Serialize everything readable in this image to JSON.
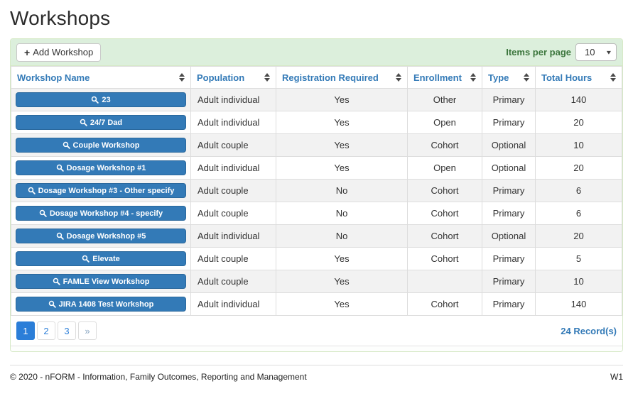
{
  "page": {
    "title": "Workshops"
  },
  "toolbar": {
    "add_button_label": "Add Workshop",
    "add_icon": "+",
    "items_per_page_label": "Items per page",
    "items_per_page_value": "10",
    "select_chevron": "▼"
  },
  "table": {
    "columns": [
      {
        "label": "Workshop Name"
      },
      {
        "label": "Population"
      },
      {
        "label": "Registration Required"
      },
      {
        "label": "Enrollment"
      },
      {
        "label": "Type"
      },
      {
        "label": "Total Hours"
      }
    ],
    "rows": [
      {
        "name": "23",
        "population": "Adult individual",
        "registration_required": "Yes",
        "enrollment": "Other",
        "type": "Primary",
        "total_hours": "140"
      },
      {
        "name": "24/7 Dad",
        "population": "Adult individual",
        "registration_required": "Yes",
        "enrollment": "Open",
        "type": "Primary",
        "total_hours": "20"
      },
      {
        "name": "Couple Workshop",
        "population": "Adult couple",
        "registration_required": "Yes",
        "enrollment": "Cohort",
        "type": "Optional",
        "total_hours": "10"
      },
      {
        "name": "Dosage Workshop #1",
        "population": "Adult individual",
        "registration_required": "Yes",
        "enrollment": "Open",
        "type": "Optional",
        "total_hours": "20"
      },
      {
        "name": "Dosage Workshop #3 - Other specify",
        "population": "Adult couple",
        "registration_required": "No",
        "enrollment": "Cohort",
        "type": "Primary",
        "total_hours": "6"
      },
      {
        "name": "Dosage Workshop #4 - specify",
        "population": "Adult couple",
        "registration_required": "No",
        "enrollment": "Cohort",
        "type": "Primary",
        "total_hours": "6"
      },
      {
        "name": "Dosage Workshop #5",
        "population": "Adult individual",
        "registration_required": "No",
        "enrollment": "Cohort",
        "type": "Optional",
        "total_hours": "20"
      },
      {
        "name": "Elevate",
        "population": "Adult couple",
        "registration_required": "Yes",
        "enrollment": "Cohort",
        "type": "Primary",
        "total_hours": "5"
      },
      {
        "name": "FAMLE View Workshop",
        "population": "Adult couple",
        "registration_required": "Yes",
        "enrollment": "",
        "type": "Primary",
        "total_hours": "10"
      },
      {
        "name": "JIRA 1408 Test Workshop",
        "population": "Adult individual",
        "registration_required": "Yes",
        "enrollment": "Cohort",
        "type": "Primary",
        "total_hours": "140"
      }
    ]
  },
  "pagination": {
    "pages": [
      {
        "label": "1",
        "active": true
      },
      {
        "label": "2"
      },
      {
        "label": "3"
      },
      {
        "label": "»",
        "muted": true
      }
    ],
    "records_label": "24 Record(s)"
  },
  "footer": {
    "copyright": "© 2020 - nFORM - Information, Family Outcomes, Reporting and Management",
    "version": "W1"
  },
  "colors": {
    "panel_header_bg": "#dcefdc",
    "panel_border": "#d6e9c6",
    "header_link_blue": "#337ab7",
    "workshop_button_blue": "#337ab7",
    "active_page_blue": "#2b7ed8",
    "stripe_gray": "#f2f2f2",
    "items_per_page_green": "#3c763d"
  }
}
